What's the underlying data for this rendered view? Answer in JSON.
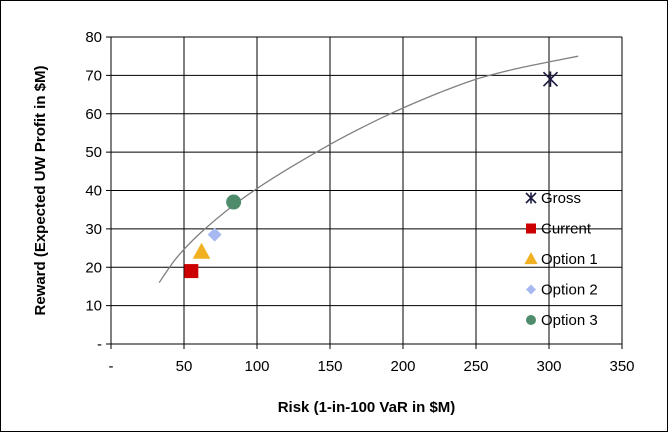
{
  "chart_data": {
    "type": "scatter",
    "title": "",
    "xlabel": "Risk (1-in-100 VaR in $M)",
    "ylabel": "Reward (Expected UW Profit in $M)",
    "xlim": [
      0,
      350
    ],
    "ylim": [
      0,
      80
    ],
    "x_ticks": [
      0,
      50,
      100,
      150,
      200,
      250,
      300,
      350
    ],
    "y_ticks": [
      0,
      10,
      20,
      30,
      40,
      50,
      60,
      70,
      80
    ],
    "x_tick_labels": [
      "-",
      "50",
      "100",
      "150",
      "200",
      "250",
      "300",
      "350"
    ],
    "y_tick_labels": [
      "-",
      "10",
      "20",
      "30",
      "40",
      "50",
      "60",
      "70",
      "80"
    ],
    "grid": true,
    "legend_position": "right",
    "series": [
      {
        "name": "Gross",
        "marker": "asterisk",
        "color": "#1a1a40",
        "x": 301,
        "y": 69
      },
      {
        "name": "Current",
        "marker": "square",
        "color": "#cc0000",
        "x": 55,
        "y": 19
      },
      {
        "name": "Option 1",
        "marker": "triangle",
        "color": "#f0b020",
        "x": 62,
        "y": 24
      },
      {
        "name": "Option 2",
        "marker": "diamond",
        "color": "#a8b8f0",
        "x": 71,
        "y": 28.5
      },
      {
        "name": "Option 3",
        "marker": "circle",
        "color": "#4e8c6c",
        "x": 84,
        "y": 37
      }
    ],
    "frontier_curve": {
      "color": "#808080",
      "x": [
        33,
        45,
        60,
        80,
        100,
        125,
        150,
        175,
        200,
        225,
        250,
        275,
        300,
        320
      ],
      "y": [
        16,
        22.5,
        28.5,
        35,
        40.5,
        46.5,
        52,
        57,
        61.5,
        65.5,
        69,
        71.5,
        73.5,
        75
      ]
    }
  }
}
